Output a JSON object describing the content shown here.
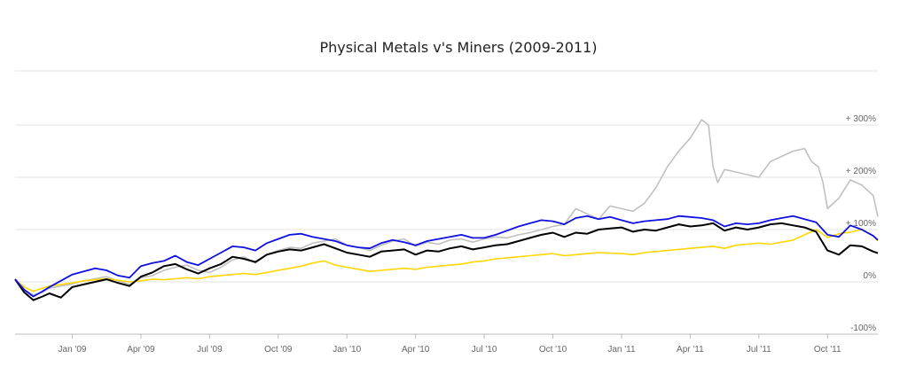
{
  "chart_data": {
    "type": "line",
    "title": "Physical Metals v's Miners (2009-2011)",
    "xlabel": "",
    "ylabel": "",
    "ylim": [
      -100,
      325
    ],
    "grid": true,
    "y_ticks": [
      {
        "value": 300,
        "label": "+ 300%"
      },
      {
        "value": 200,
        "label": "+ 200%"
      },
      {
        "value": 100,
        "label": "+ 100%"
      },
      {
        "value": 0,
        "label": "0%"
      },
      {
        "value": -100,
        "label": "-100%"
      }
    ],
    "x_ticks": [
      {
        "value": 1.0,
        "label": "Jan '09"
      },
      {
        "value": 4.0,
        "label": "Apr '09"
      },
      {
        "value": 7.0,
        "label": "Jul '09"
      },
      {
        "value": 10.0,
        "label": "Oct '09"
      },
      {
        "value": 13.0,
        "label": "Jan '10"
      },
      {
        "value": 16.0,
        "label": "Apr '10"
      },
      {
        "value": 19.0,
        "label": "Jul '10"
      },
      {
        "value": 22.0,
        "label": "Oct '10"
      },
      {
        "value": 25.0,
        "label": "Jan '11"
      },
      {
        "value": 28.0,
        "label": "Apr '11"
      },
      {
        "value": 31.0,
        "label": "Jul '11"
      },
      {
        "value": 34.0,
        "label": "Oct '11"
      }
    ],
    "x_range": [
      -1.5,
      36.2
    ],
    "series": [
      {
        "color": "#c0c0c0",
        "x": [
          -1.5,
          -1.1,
          -0.7,
          -0.3,
          0.0,
          0.5,
          1.0,
          1.5,
          2.0,
          2.5,
          3.0,
          3.5,
          4.0,
          4.5,
          5.0,
          5.5,
          6.0,
          6.5,
          7.0,
          7.5,
          8.0,
          8.5,
          9.0,
          9.5,
          10.0,
          10.5,
          11.0,
          11.5,
          12.0,
          12.5,
          13.0,
          13.5,
          14.0,
          14.5,
          15.0,
          15.5,
          16.0,
          16.5,
          17.0,
          17.5,
          18.0,
          18.5,
          19.0,
          19.5,
          20.0,
          20.5,
          21.0,
          21.5,
          22.0,
          22.5,
          23.0,
          23.5,
          24.0,
          24.5,
          25.0,
          25.5,
          26.0,
          26.5,
          27.0,
          27.5,
          28.0,
          28.5,
          28.8,
          29.0,
          29.2,
          29.5,
          30.0,
          30.5,
          31.0,
          31.5,
          32.0,
          32.5,
          33.0,
          33.3,
          33.6,
          33.8,
          34.0,
          34.5,
          35.0,
          35.5,
          36.0,
          36.2
        ],
        "y": [
          5,
          -15,
          -25,
          -20,
          -12,
          -8,
          -4,
          2,
          6,
          10,
          2,
          -5,
          8,
          12,
          22,
          28,
          32,
          22,
          18,
          28,
          42,
          48,
          36,
          52,
          60,
          66,
          64,
          74,
          78,
          82,
          70,
          66,
          60,
          70,
          78,
          82,
          68,
          76,
          72,
          80,
          82,
          76,
          82,
          86,
          84,
          90,
          94,
          100,
          106,
          110,
          140,
          130,
          120,
          145,
          140,
          135,
          150,
          180,
          220,
          250,
          275,
          310,
          300,
          220,
          190,
          215,
          210,
          205,
          200,
          230,
          240,
          250,
          255,
          230,
          220,
          190,
          140,
          160,
          195,
          185,
          165,
          125
        ]
      },
      {
        "color": "#ffd700",
        "x": [
          -1.5,
          -1.1,
          -0.7,
          -0.3,
          0.0,
          0.5,
          1.0,
          1.5,
          2.0,
          2.5,
          3.0,
          3.5,
          4.0,
          4.5,
          5.0,
          5.5,
          6.0,
          6.5,
          7.0,
          7.5,
          8.0,
          8.5,
          9.0,
          9.5,
          10.0,
          10.5,
          11.0,
          11.5,
          12.0,
          12.5,
          13.0,
          13.5,
          14.0,
          14.5,
          15.0,
          15.5,
          16.0,
          16.5,
          17.0,
          17.5,
          18.0,
          18.5,
          19.0,
          19.5,
          20.0,
          20.5,
          21.0,
          21.5,
          22.0,
          22.5,
          23.0,
          23.5,
          24.0,
          24.5,
          25.0,
          25.5,
          26.0,
          26.5,
          27.0,
          27.5,
          28.0,
          28.5,
          29.0,
          29.5,
          30.0,
          30.5,
          31.0,
          31.5,
          32.0,
          32.5,
          33.0,
          33.5,
          34.0,
          34.5,
          35.0,
          35.5,
          36.0,
          36.2
        ],
        "y": [
          5,
          -10,
          -18,
          -12,
          -8,
          -5,
          -2,
          2,
          4,
          6,
          3,
          0,
          2,
          5,
          4,
          6,
          8,
          6,
          10,
          12,
          14,
          16,
          14,
          18,
          22,
          26,
          30,
          36,
          40,
          32,
          28,
          24,
          20,
          22,
          24,
          26,
          24,
          28,
          30,
          32,
          34,
          38,
          40,
          44,
          46,
          48,
          50,
          52,
          54,
          50,
          52,
          54,
          56,
          55,
          54,
          52,
          56,
          58,
          60,
          62,
          64,
          66,
          68,
          64,
          70,
          72,
          74,
          72,
          76,
          80,
          90,
          100,
          85,
          92,
          95,
          100,
          88,
          78
        ]
      },
      {
        "color": "#000000",
        "x": [
          -1.5,
          -1.1,
          -0.7,
          -0.3,
          0.0,
          0.5,
          1.0,
          1.5,
          2.0,
          2.5,
          3.0,
          3.5,
          4.0,
          4.5,
          5.0,
          5.5,
          6.0,
          6.5,
          7.0,
          7.5,
          8.0,
          8.5,
          9.0,
          9.5,
          10.0,
          10.5,
          11.0,
          11.5,
          12.0,
          12.5,
          13.0,
          13.5,
          14.0,
          14.5,
          15.0,
          15.5,
          16.0,
          16.5,
          17.0,
          17.5,
          18.0,
          18.5,
          19.0,
          19.5,
          20.0,
          20.5,
          21.0,
          21.5,
          22.0,
          22.5,
          23.0,
          23.5,
          24.0,
          24.5,
          25.0,
          25.5,
          26.0,
          26.5,
          27.0,
          27.5,
          28.0,
          28.5,
          29.0,
          29.5,
          30.0,
          30.5,
          31.0,
          31.5,
          32.0,
          32.5,
          33.0,
          33.5,
          34.0,
          34.5,
          35.0,
          35.5,
          36.0,
          36.2
        ],
        "y": [
          5,
          -20,
          -35,
          -28,
          -22,
          -30,
          -10,
          -5,
          0,
          5,
          -2,
          -8,
          10,
          18,
          30,
          34,
          24,
          16,
          26,
          34,
          48,
          44,
          38,
          52,
          58,
          62,
          60,
          66,
          72,
          64,
          56,
          52,
          48,
          58,
          60,
          62,
          52,
          60,
          58,
          64,
          68,
          62,
          66,
          70,
          72,
          78,
          84,
          90,
          94,
          86,
          94,
          92,
          100,
          102,
          104,
          96,
          100,
          98,
          104,
          110,
          106,
          108,
          112,
          98,
          104,
          100,
          104,
          110,
          112,
          108,
          104,
          96,
          60,
          52,
          70,
          68,
          58,
          55
        ]
      },
      {
        "color": "#1010e0",
        "x": [
          -1.5,
          -1.1,
          -0.7,
          -0.3,
          0.0,
          0.5,
          1.0,
          1.5,
          2.0,
          2.5,
          3.0,
          3.5,
          4.0,
          4.5,
          5.0,
          5.5,
          6.0,
          6.5,
          7.0,
          7.5,
          8.0,
          8.5,
          9.0,
          9.5,
          10.0,
          10.5,
          11.0,
          11.5,
          12.0,
          12.5,
          13.0,
          13.5,
          14.0,
          14.5,
          15.0,
          15.5,
          16.0,
          16.5,
          17.0,
          17.5,
          18.0,
          18.5,
          19.0,
          19.5,
          20.0,
          20.5,
          21.0,
          21.5,
          22.0,
          22.5,
          23.0,
          23.5,
          24.0,
          24.5,
          25.0,
          25.5,
          26.0,
          26.5,
          27.0,
          27.5,
          28.0,
          28.5,
          29.0,
          29.5,
          30.0,
          30.5,
          31.0,
          31.5,
          32.0,
          32.5,
          33.0,
          33.5,
          34.0,
          34.5,
          35.0,
          35.5,
          36.0,
          36.2
        ],
        "y": [
          5,
          -15,
          -28,
          -18,
          -10,
          2,
          14,
          20,
          26,
          22,
          12,
          8,
          30,
          36,
          40,
          50,
          38,
          32,
          44,
          56,
          68,
          66,
          60,
          74,
          82,
          90,
          92,
          86,
          82,
          78,
          70,
          66,
          64,
          74,
          80,
          76,
          70,
          78,
          82,
          86,
          90,
          84,
          84,
          90,
          98,
          106,
          112,
          118,
          116,
          110,
          122,
          126,
          120,
          124,
          118,
          112,
          116,
          118,
          120,
          126,
          124,
          122,
          118,
          106,
          112,
          110,
          112,
          118,
          122,
          126,
          120,
          114,
          90,
          86,
          108,
          100,
          88,
          80
        ]
      }
    ]
  }
}
